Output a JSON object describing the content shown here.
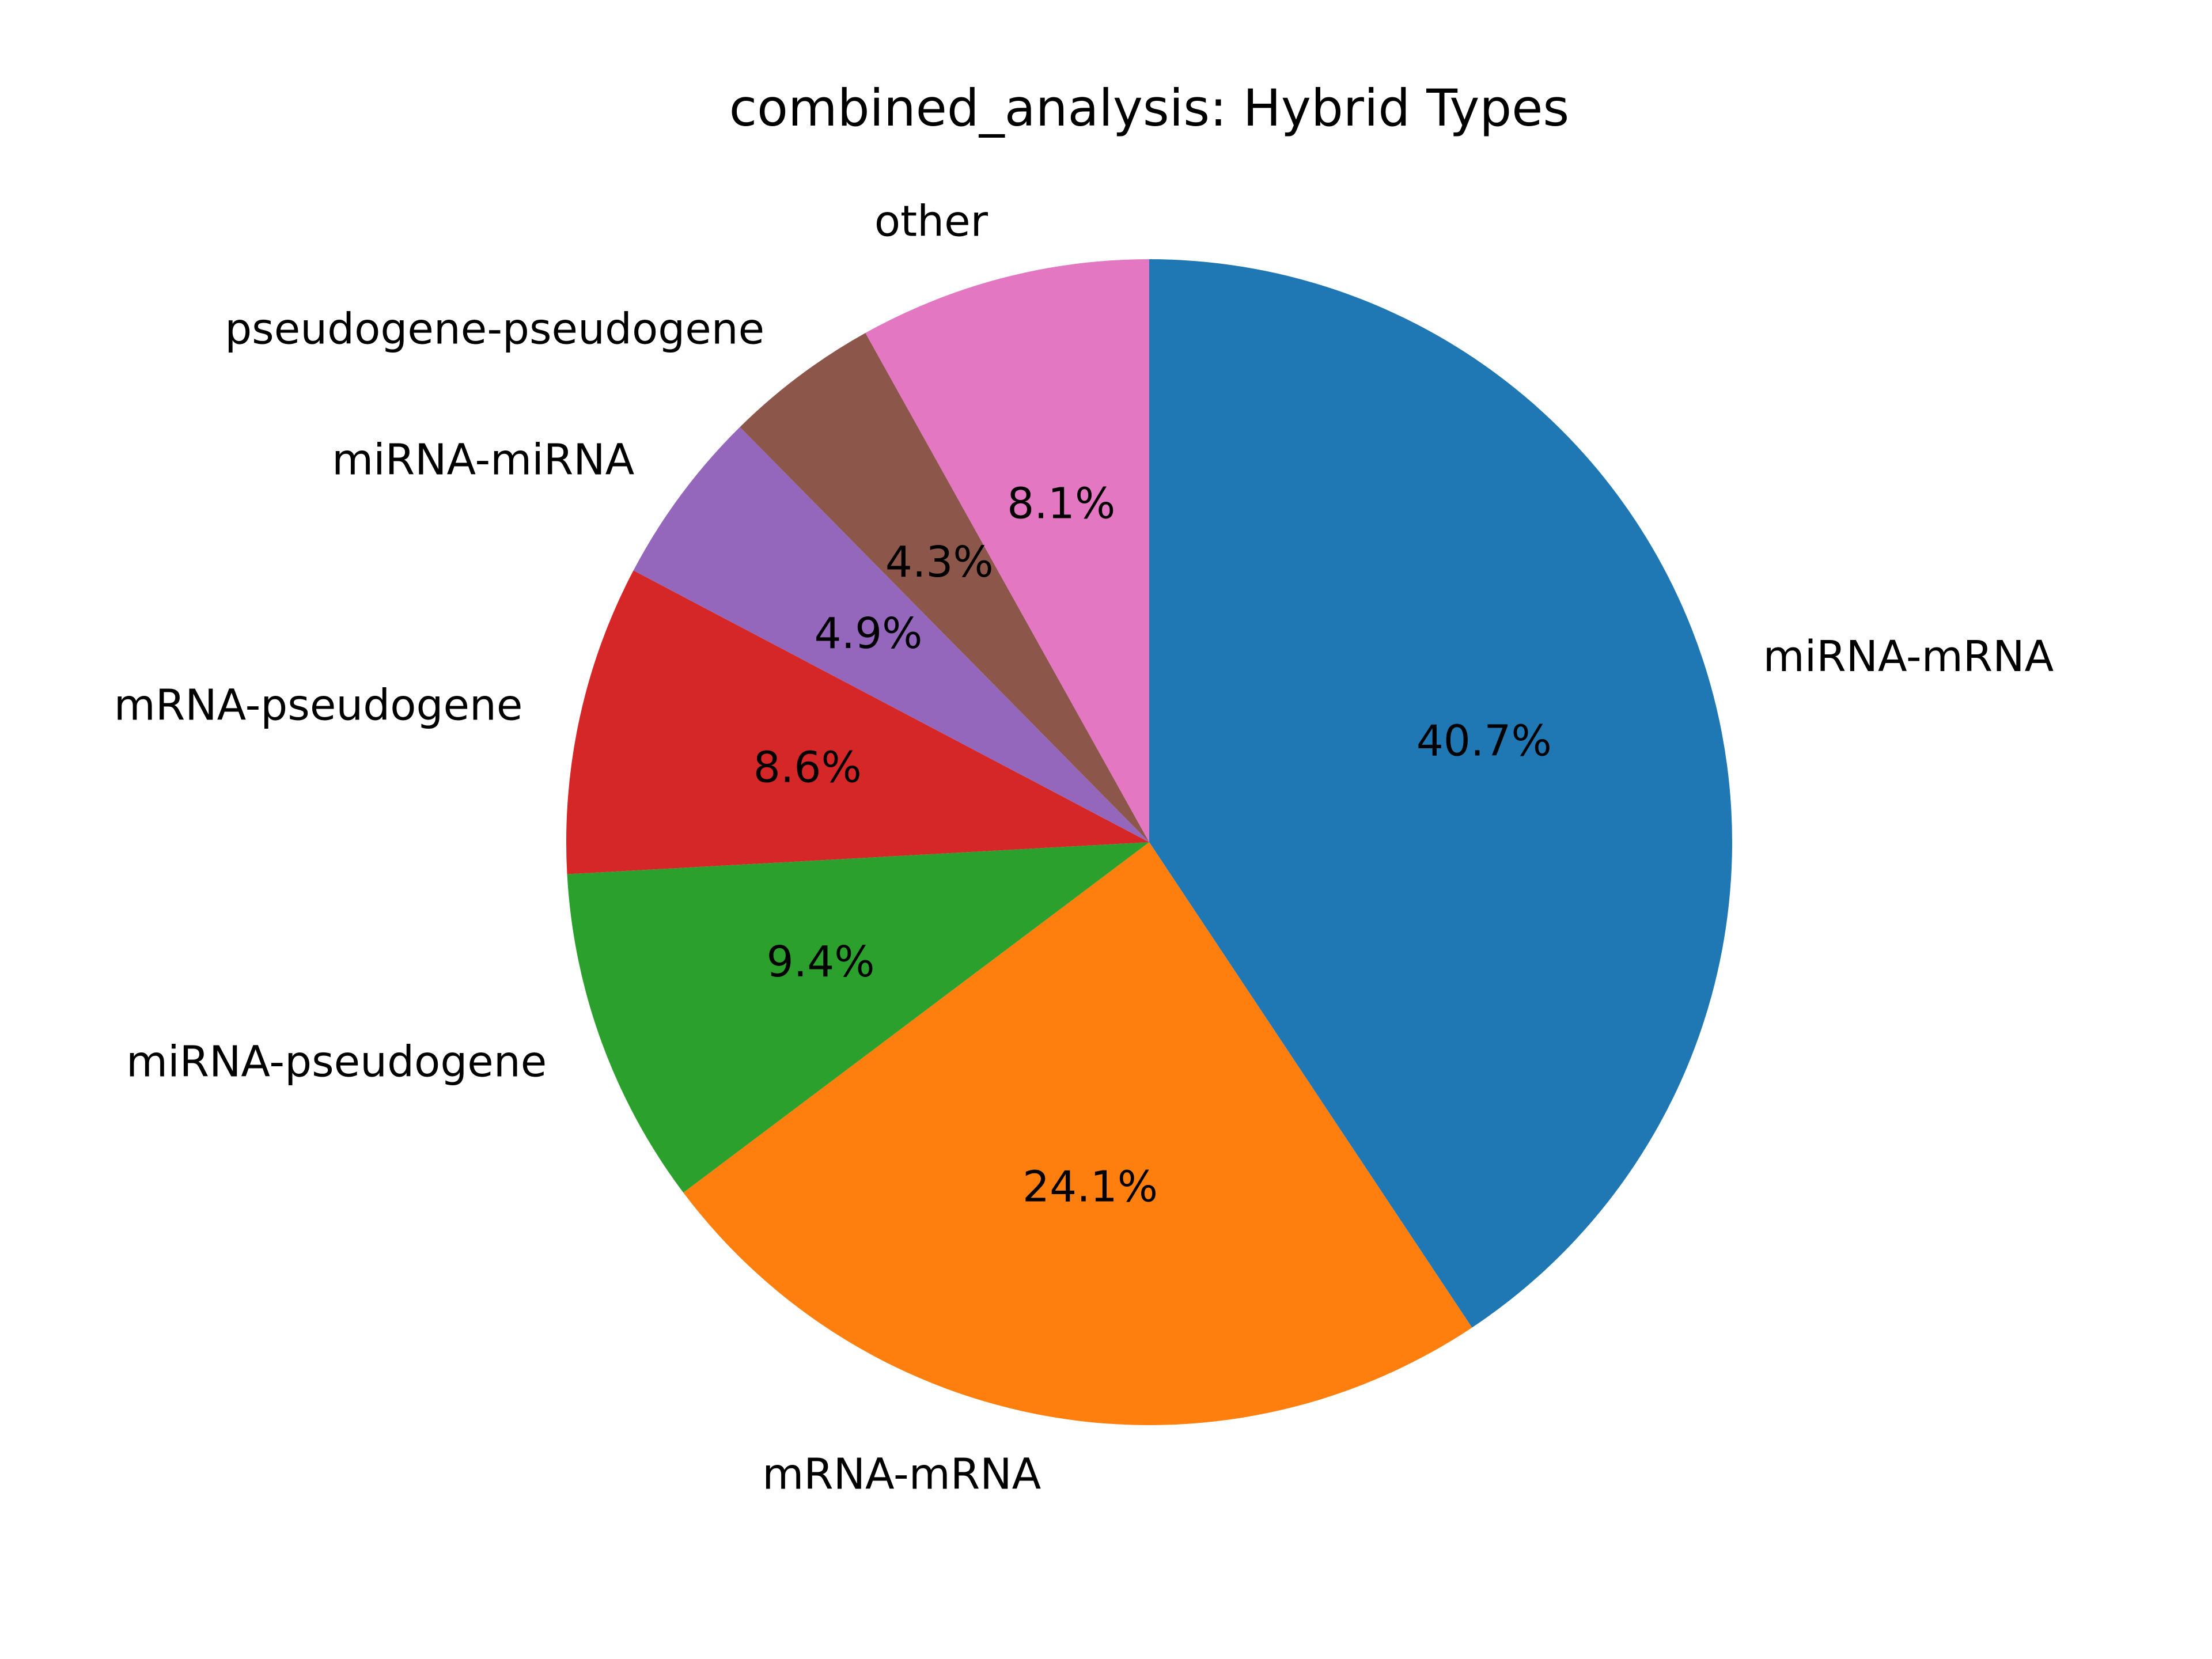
{
  "chart_data": {
    "type": "pie",
    "title": "combined_analysis: Hybrid Types",
    "start_angle_deg": 90,
    "direction": "clockwise",
    "slices": [
      {
        "label": "miRNA-mRNA",
        "value": 40.7,
        "pct_label": "40.7%",
        "color": "#1f77b4"
      },
      {
        "label": "mRNA-mRNA",
        "value": 24.1,
        "pct_label": "24.1%",
        "color": "#ff7f0e"
      },
      {
        "label": "miRNA-pseudogene",
        "value": 9.4,
        "pct_label": "9.4%",
        "color": "#2ca02c"
      },
      {
        "label": "mRNA-pseudogene",
        "value": 8.6,
        "pct_label": "8.6%",
        "color": "#d62728"
      },
      {
        "label": "miRNA-miRNA",
        "value": 4.9,
        "pct_label": "4.9%",
        "color": "#9467bd"
      },
      {
        "label": "pseudogene-pseudogene",
        "value": 4.3,
        "pct_label": "4.3%",
        "color": "#8c564b"
      },
      {
        "label": "other",
        "value": 8.1,
        "pct_label": "8.1%",
        "color": "#e377c2"
      }
    ]
  }
}
